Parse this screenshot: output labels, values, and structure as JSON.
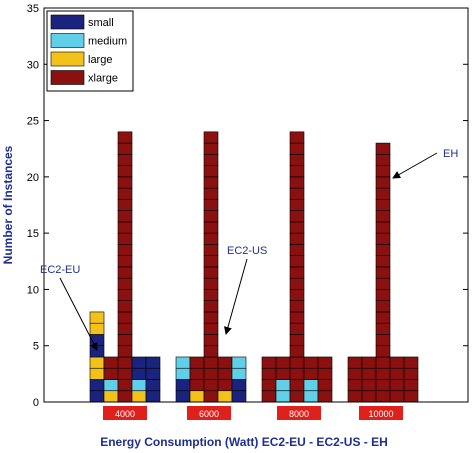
{
  "chart_data": {
    "type": "bar",
    "xlabel": "Energy Consumption (Watt) EC2-EU - EC2-US - EH",
    "ylabel": "Number of Instances",
    "ylim": [
      0,
      35
    ],
    "yticks": [
      0,
      5,
      10,
      15,
      20,
      25,
      30,
      35
    ],
    "grid": false,
    "legend_position": "top-left",
    "colors": {
      "small": "#1a237e",
      "medium": "#5fd0e8",
      "large": "#f2c21b",
      "xlarge": "#8b1010",
      "category_box": "#e0201b",
      "annotation": "#1f2f8f"
    },
    "legend": [
      {
        "key": "small",
        "label": "small"
      },
      {
        "key": "medium",
        "label": "medium"
      },
      {
        "key": "large",
        "label": "large"
      },
      {
        "key": "xlarge",
        "label": "xlarge"
      }
    ],
    "groups": [
      {
        "category": "4000",
        "bars": [
          {
            "provider": "EC2-EU",
            "stack": [
              "small",
              "small",
              "large",
              "large",
              "small",
              "small",
              "large",
              "large"
            ]
          },
          {
            "provider": "EC2-EU",
            "stack": [
              "large",
              "medium",
              "xlarge",
              "xlarge"
            ]
          },
          {
            "provider": "EC2-EU",
            "stack": [
              "xlarge",
              "xlarge",
              "xlarge",
              "xlarge",
              "xlarge",
              "xlarge",
              "xlarge",
              "xlarge",
              "xlarge",
              "xlarge",
              "xlarge",
              "xlarge",
              "xlarge",
              "xlarge",
              "xlarge",
              "xlarge",
              "xlarge",
              "xlarge",
              "xlarge",
              "xlarge",
              "xlarge",
              "xlarge",
              "xlarge",
              "xlarge"
            ]
          },
          {
            "provider": "EC2-EU",
            "stack": [
              "large",
              "medium",
              "small",
              "small"
            ]
          },
          {
            "provider": "EC2-EU",
            "stack": [
              "small",
              "small",
              "small",
              "small"
            ]
          }
        ]
      },
      {
        "category": "6000",
        "bars": [
          {
            "provider": "EC2-US",
            "stack": [
              "small",
              "small",
              "medium",
              "medium"
            ]
          },
          {
            "provider": "EC2-US",
            "stack": [
              "large",
              "xlarge",
              "xlarge",
              "xlarge"
            ]
          },
          {
            "provider": "EC2-US",
            "stack": [
              "xlarge",
              "xlarge",
              "xlarge",
              "xlarge",
              "xlarge",
              "xlarge",
              "xlarge",
              "xlarge",
              "xlarge",
              "xlarge",
              "xlarge",
              "xlarge",
              "xlarge",
              "xlarge",
              "xlarge",
              "xlarge",
              "xlarge",
              "xlarge",
              "xlarge",
              "xlarge",
              "xlarge",
              "xlarge",
              "xlarge",
              "xlarge"
            ]
          },
          {
            "provider": "EC2-US",
            "stack": [
              "large",
              "xlarge",
              "xlarge",
              "xlarge"
            ]
          },
          {
            "provider": "EC2-US",
            "stack": [
              "small",
              "small",
              "medium",
              "medium"
            ]
          }
        ]
      },
      {
        "category": "8000",
        "bars": [
          {
            "provider": "EH",
            "stack": [
              "xlarge",
              "xlarge",
              "xlarge",
              "xlarge"
            ]
          },
          {
            "provider": "EH",
            "stack": [
              "medium",
              "medium",
              "xlarge",
              "xlarge"
            ]
          },
          {
            "provider": "EH",
            "stack": [
              "xlarge",
              "xlarge",
              "xlarge",
              "xlarge",
              "xlarge",
              "xlarge",
              "xlarge",
              "xlarge",
              "xlarge",
              "xlarge",
              "xlarge",
              "xlarge",
              "xlarge",
              "xlarge",
              "xlarge",
              "xlarge",
              "xlarge",
              "xlarge",
              "xlarge",
              "xlarge",
              "xlarge",
              "xlarge",
              "xlarge",
              "xlarge"
            ]
          },
          {
            "provider": "EH",
            "stack": [
              "medium",
              "medium",
              "xlarge",
              "xlarge"
            ]
          },
          {
            "provider": "EH",
            "stack": [
              "xlarge",
              "xlarge",
              "xlarge",
              "xlarge"
            ]
          }
        ]
      },
      {
        "category": "10000",
        "bars": [
          {
            "provider": "EH",
            "stack": [
              "xlarge",
              "xlarge",
              "xlarge",
              "xlarge"
            ]
          },
          {
            "provider": "EH",
            "stack": [
              "xlarge",
              "xlarge",
              "xlarge",
              "xlarge"
            ]
          },
          {
            "provider": "EH",
            "stack": [
              "xlarge",
              "xlarge",
              "xlarge",
              "xlarge",
              "xlarge",
              "xlarge",
              "xlarge",
              "xlarge",
              "xlarge",
              "xlarge",
              "xlarge",
              "xlarge",
              "xlarge",
              "xlarge",
              "xlarge",
              "xlarge",
              "xlarge",
              "xlarge",
              "xlarge",
              "xlarge",
              "xlarge",
              "xlarge",
              "xlarge"
            ]
          },
          {
            "provider": "EH",
            "stack": [
              "xlarge",
              "xlarge",
              "xlarge",
              "xlarge"
            ]
          },
          {
            "provider": "EH",
            "stack": [
              "xlarge",
              "xlarge",
              "xlarge",
              "xlarge"
            ]
          }
        ]
      }
    ],
    "annotations": [
      {
        "text": "EC2-EU",
        "points_to_category": "4000"
      },
      {
        "text": "EC2-US",
        "points_to_category": "6000"
      },
      {
        "text": "EH",
        "points_to_category": "10000"
      }
    ]
  }
}
